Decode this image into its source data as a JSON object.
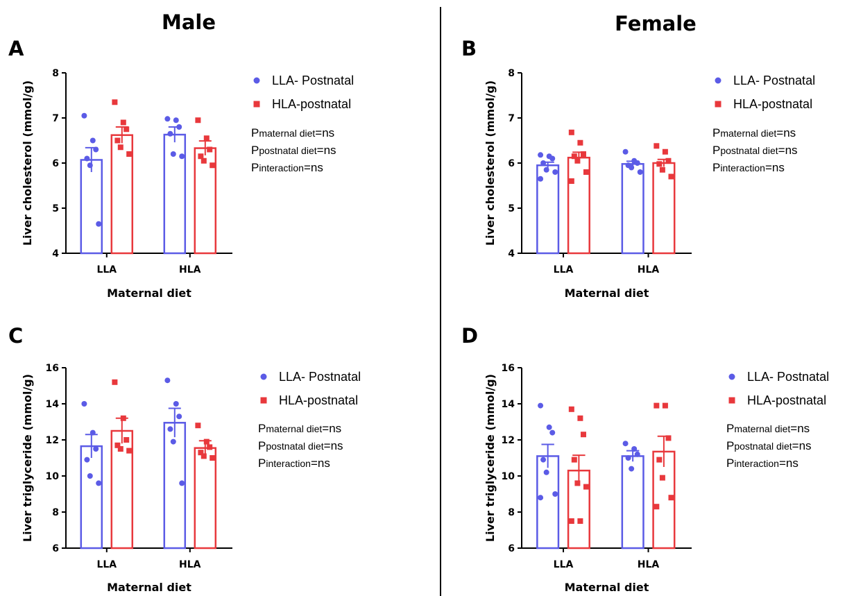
{
  "titles": {
    "left": "Male",
    "right": "Female"
  },
  "colors": {
    "llaBlue": "#5b5be6",
    "hlaRed": "#e8383c",
    "axis": "#000000"
  },
  "chart_data": [
    {
      "panel": "A",
      "type": "bar",
      "categories": [
        "LLA",
        "HLA"
      ],
      "xlabel": "Maternal diet",
      "ylabel": "Liver cholesterol (mmol/g)",
      "ylim": [
        4,
        8
      ],
      "yticks": [
        "4",
        "5",
        "6",
        "7",
        "8"
      ],
      "legend": {
        "position": "right",
        "entries": [
          "LLA- Postnatal",
          "HLA-postnatal"
        ]
      },
      "series": [
        {
          "name": "LLA- Postnatal",
          "values": [
            6.07,
            6.63
          ],
          "sem": [
            0.27,
            0.17
          ],
          "points": [
            [
              7.05,
              6.5,
              6.3,
              6.1,
              5.95,
              4.65
            ],
            [
              6.98,
              6.95,
              6.8,
              6.65,
              6.2,
              6.15
            ]
          ]
        },
        {
          "name": "HLA-postnatal",
          "values": [
            6.62,
            6.33
          ],
          "sem": [
            0.18,
            0.16
          ],
          "points": [
            [
              7.35,
              6.9,
              6.75,
              6.5,
              6.35,
              6.2
            ],
            [
              6.95,
              6.55,
              6.3,
              6.15,
              6.05,
              5.95
            ]
          ]
        }
      ],
      "stats": [
        {
          "p": "P",
          "sub": "maternal diet",
          "tail": "=ns"
        },
        {
          "p": "P",
          "sub": "postnatal diet",
          "tail": "=ns"
        },
        {
          "p": "P",
          "sub": "interaction",
          "tail": "=ns"
        }
      ]
    },
    {
      "panel": "B",
      "type": "bar",
      "categories": [
        "LLA",
        "HLA"
      ],
      "xlabel": "Maternal diet",
      "ylabel": "Liver cholesterol (mmol/g)",
      "ylim": [
        4,
        8
      ],
      "yticks": [
        "4",
        "5",
        "6",
        "7",
        "8"
      ],
      "legend": {
        "position": "right",
        "entries": [
          "LLA- Postnatal",
          "HLA-postnatal"
        ]
      },
      "series": [
        {
          "name": "LLA- Postnatal",
          "values": [
            5.95,
            5.98
          ],
          "sem": [
            0.07,
            0.06
          ],
          "points": [
            [
              6.18,
              6.15,
              6.1,
              6.0,
              5.85,
              5.8,
              5.65
            ],
            [
              6.25,
              6.05,
              6.0,
              5.95,
              5.9,
              5.8
            ]
          ]
        },
        {
          "name": "HLA-postnatal",
          "values": [
            6.12,
            6.0
          ],
          "sem": [
            0.12,
            0.08
          ],
          "points": [
            [
              6.68,
              6.45,
              6.2,
              6.15,
              6.05,
              5.8,
              5.6
            ],
            [
              6.38,
              6.25,
              6.05,
              5.98,
              5.85,
              5.7
            ]
          ]
        }
      ],
      "stats": [
        {
          "p": "P",
          "sub": "maternal diet",
          "tail": "=ns"
        },
        {
          "p": "P",
          "sub": "postnatal diet",
          "tail": "=ns"
        },
        {
          "p": "P",
          "sub": "interaction",
          "tail": "=ns"
        }
      ]
    },
    {
      "panel": "C",
      "type": "bar",
      "categories": [
        "LLA",
        "HLA"
      ],
      "xlabel": "Maternal diet",
      "ylabel": "Liver triglyceride (mmol/g)",
      "ylim": [
        6,
        16
      ],
      "yticks": [
        "6",
        "8",
        "10",
        "12",
        "14",
        "16"
      ],
      "legend": {
        "position": "right",
        "entries": [
          "LLA- Postnatal",
          "HLA-postnatal"
        ]
      },
      "series": [
        {
          "name": "LLA- Postnatal",
          "values": [
            11.65,
            12.95
          ],
          "sem": [
            0.65,
            0.8
          ],
          "points": [
            [
              14.0,
              12.4,
              11.5,
              10.9,
              10.0,
              9.6
            ],
            [
              15.3,
              14.0,
              13.3,
              12.6,
              11.9,
              9.6
            ]
          ]
        },
        {
          "name": "HLA-postnatal",
          "values": [
            12.5,
            11.55
          ],
          "sem": [
            0.7,
            0.4
          ],
          "points": [
            [
              15.2,
              13.2,
              12.0,
              11.7,
              11.5,
              11.4
            ],
            [
              12.8,
              11.9,
              11.6,
              11.3,
              11.1,
              11.0
            ]
          ]
        }
      ],
      "stats": [
        {
          "p": "P",
          "sub": "maternal diet",
          "tail": "=ns"
        },
        {
          "p": "P",
          "sub": "postnatal diet",
          "tail": "=ns"
        },
        {
          "p": "P",
          "sub": "interaction",
          "tail": "=ns"
        }
      ]
    },
    {
      "panel": "D",
      "type": "bar",
      "categories": [
        "LLA",
        "HLA"
      ],
      "xlabel": "Maternal diet",
      "ylabel": "Liver triglyceride (mmol/g)",
      "ylim": [
        6,
        16
      ],
      "yticks": [
        "6",
        "8",
        "10",
        "12",
        "14",
        "16"
      ],
      "legend": {
        "position": "right",
        "entries": [
          "LLA- Postnatal",
          "HLA-postnatal"
        ]
      },
      "series": [
        {
          "name": "LLA- Postnatal",
          "values": [
            11.1,
            11.1
          ],
          "sem": [
            0.65,
            0.3
          ],
          "points": [
            [
              13.9,
              12.7,
              12.4,
              10.9,
              10.2,
              9.0,
              8.8
            ],
            [
              11.8,
              11.5,
              11.2,
              11.0,
              10.4
            ]
          ]
        },
        {
          "name": "HLA-postnatal",
          "values": [
            10.3,
            11.35
          ],
          "sem": [
            0.85,
            0.85
          ],
          "points": [
            [
              13.7,
              13.2,
              12.3,
              10.9,
              9.6,
              9.4,
              7.5,
              7.5
            ],
            [
              13.9,
              13.9,
              12.1,
              10.9,
              9.9,
              8.8,
              8.3
            ]
          ]
        }
      ],
      "stats": [
        {
          "p": "P",
          "sub": "maternal diet",
          "tail": "=ns"
        },
        {
          "p": "P",
          "sub": "postnatal diet",
          "tail": "=ns"
        },
        {
          "p": "P",
          "sub": "interaction",
          "tail": "=ns"
        }
      ]
    }
  ]
}
